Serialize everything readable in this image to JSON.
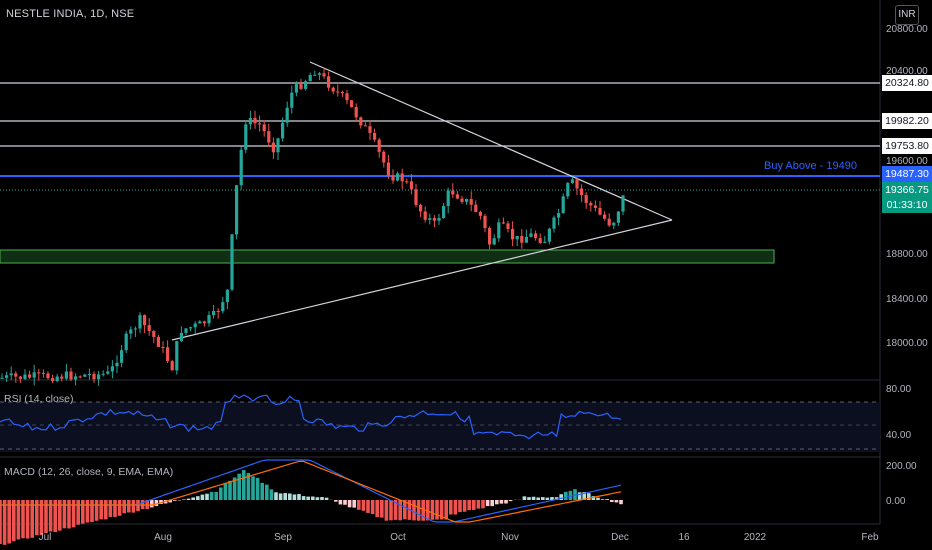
{
  "header": {
    "symbol_title": "NESTLE INDIA, 1D, NSE",
    "currency": "INR"
  },
  "price_axis": {
    "ticks": [
      "20800.00",
      "20400.00",
      "19600.00",
      "18800.00",
      "18400.00",
      "18000.00"
    ]
  },
  "price_tags": {
    "r1": "20324.80",
    "r2": "19982.20",
    "r3": "19753.80",
    "buy": "19487.30",
    "last": "19366.75",
    "countdown": "01:33:10"
  },
  "annotation": {
    "buy_text": "Buy Above - 19490"
  },
  "rsi": {
    "label": "RSI (14, close)",
    "ticks": [
      "80.00",
      "40.00"
    ]
  },
  "macd": {
    "label": "MACD (12, 26, close, 9, EMA, EMA)",
    "ticks": [
      "200.00",
      "0.00"
    ]
  },
  "time_axis": {
    "labels": [
      "Jul",
      "Aug",
      "Sep",
      "Oct",
      "Nov",
      "Dec",
      "16",
      "2022",
      "Feb"
    ]
  },
  "colors": {
    "bull": "#26a69a",
    "bear": "#ef5350",
    "blue": "#2962ff",
    "white_line": "#d1d4dc",
    "zone_fill": "#1a3a1f",
    "zone_border": "#4caf50",
    "rsi_line": "#2962ff",
    "macd_line": "#2962ff",
    "signal_line": "#ff6d00"
  },
  "chart_data": {
    "type": "candlestick",
    "price_levels": [
      20324.8,
      19982.2,
      19753.8,
      19487.3
    ],
    "support_zone": [
      18780,
      18880
    ],
    "last_price": 19366.75
  }
}
